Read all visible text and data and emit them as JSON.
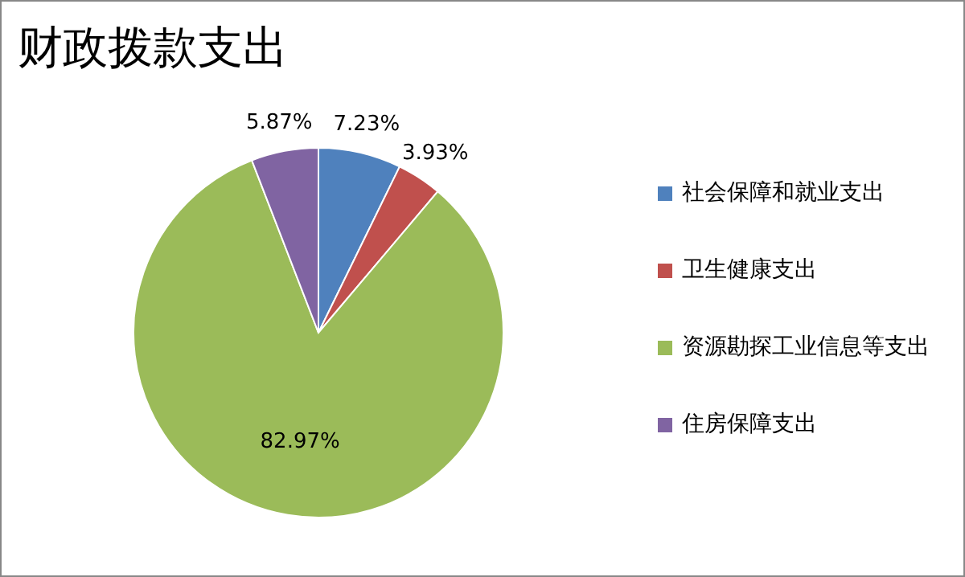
{
  "chart_data": {
    "type": "pie",
    "title": "财政拨款支出",
    "categories": [
      "社会保障和就业支出",
      "卫生健康支出",
      "资源勘探工业信息等支出",
      "住房保障支出"
    ],
    "values": [
      7.23,
      3.93,
      82.97,
      5.87
    ],
    "value_labels": [
      "7.23%",
      "3.93%",
      "82.97%",
      "5.87%"
    ],
    "colors": [
      "#4f81bd",
      "#c0504d",
      "#9bbb59",
      "#8064a2"
    ],
    "legend": "right"
  }
}
